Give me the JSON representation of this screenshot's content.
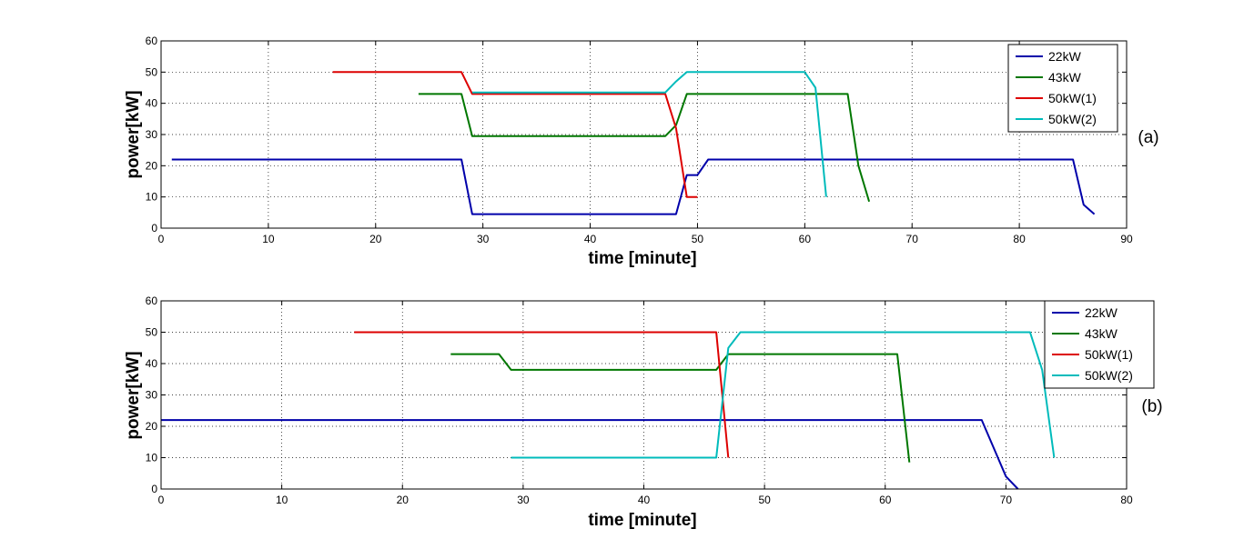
{
  "colors": {
    "22kW": "#0000aa",
    "43kW": "#007700",
    "50kW(1)": "#dd0000",
    "50kW(2)": "#00bbbb"
  },
  "chart_data": [
    {
      "type": "line",
      "panel_label": "(a)",
      "xlabel": "time [minute]",
      "ylabel": "power[kW]",
      "xlim": [
        0,
        90
      ],
      "ylim": [
        0,
        60
      ],
      "xticks": [
        0,
        10,
        20,
        30,
        40,
        50,
        60,
        70,
        80,
        90
      ],
      "yticks": [
        0,
        10,
        20,
        30,
        40,
        50,
        60
      ],
      "grid": true,
      "legend_position": "top-right",
      "series": [
        {
          "name": "22kW",
          "color": "#0000aa",
          "points": [
            [
              1,
              22
            ],
            [
              28,
              22
            ],
            [
              29,
              4.5
            ],
            [
              47,
              4.5
            ],
            [
              48,
              4.5
            ],
            [
              49,
              17
            ],
            [
              50,
              17
            ],
            [
              51,
              22
            ],
            [
              85,
              22
            ],
            [
              86,
              7.5
            ],
            [
              87,
              4.5
            ]
          ]
        },
        {
          "name": "43kW",
          "color": "#007700",
          "points": [
            [
              24,
              43
            ],
            [
              28,
              43
            ],
            [
              29,
              29.5
            ],
            [
              47,
              29.5
            ],
            [
              48,
              33
            ],
            [
              49,
              43
            ],
            [
              64,
              43
            ],
            [
              65,
              20
            ],
            [
              66,
              8.5
            ]
          ]
        },
        {
          "name": "50kW(1)",
          "color": "#dd0000",
          "points": [
            [
              16,
              50
            ],
            [
              28,
              50
            ],
            [
              29,
              43
            ],
            [
              47,
              43
            ],
            [
              48,
              32
            ],
            [
              49,
              10
            ],
            [
              50,
              10
            ]
          ]
        },
        {
          "name": "50kW(2)",
          "color": "#00bbbb",
          "points": [
            [
              29,
              43.5
            ],
            [
              47,
              43.5
            ],
            [
              48,
              47
            ],
            [
              49,
              50
            ],
            [
              60,
              50
            ],
            [
              61,
              45
            ],
            [
              62,
              10
            ]
          ]
        }
      ]
    },
    {
      "type": "line",
      "panel_label": "(b)",
      "xlabel": "time [minute]",
      "ylabel": "power[kW]",
      "xlim": [
        0,
        80
      ],
      "ylim": [
        0,
        60
      ],
      "xticks": [
        0,
        10,
        20,
        30,
        40,
        50,
        60,
        70,
        80
      ],
      "yticks": [
        0,
        10,
        20,
        30,
        40,
        50,
        60
      ],
      "grid": true,
      "legend_position": "top-right, outside",
      "series": [
        {
          "name": "22kW",
          "color": "#0000aa",
          "points": [
            [
              0,
              22
            ],
            [
              68,
              22
            ],
            [
              69,
              13
            ],
            [
              70,
              4
            ],
            [
              71,
              0
            ]
          ]
        },
        {
          "name": "43kW",
          "color": "#007700",
          "points": [
            [
              24,
              43
            ],
            [
              28,
              43
            ],
            [
              29,
              38
            ],
            [
              46,
              38
            ],
            [
              47,
              43
            ],
            [
              61,
              43
            ],
            [
              62,
              8.5
            ]
          ]
        },
        {
          "name": "50kW(1)",
          "color": "#dd0000",
          "points": [
            [
              16,
              50
            ],
            [
              46,
              50
            ],
            [
              47,
              10
            ]
          ]
        },
        {
          "name": "50kW(2)",
          "color": "#00bbbb",
          "points": [
            [
              29,
              10
            ],
            [
              46,
              10
            ],
            [
              47,
              45
            ],
            [
              48,
              50
            ],
            [
              72,
              50
            ],
            [
              73,
              38
            ],
            [
              74,
              10
            ]
          ]
        }
      ]
    }
  ]
}
